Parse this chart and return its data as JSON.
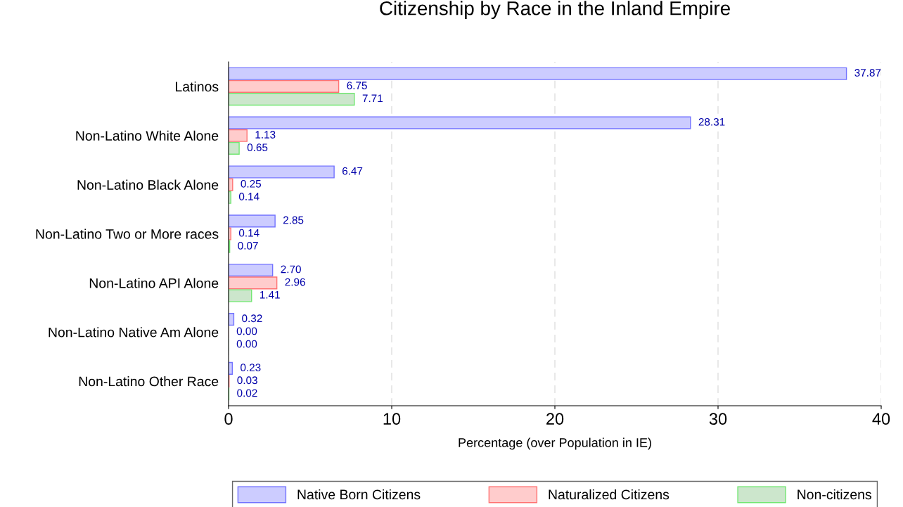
{
  "chart_data": {
    "type": "bar",
    "orientation": "horizontal",
    "title": "Citizenship by Race in the Inland Empire",
    "xlabel": "Percentage (over Population in IE)",
    "categories": [
      "Latinos",
      "Non-Latino White Alone",
      "Non-Latino Black Alone",
      "Non-Latino Two or More races",
      "Non-Latino API Alone",
      "Non-Latino Native Am Alone",
      "Non-Latino Other Race"
    ],
    "series": [
      {
        "name": "Native Born Citizens",
        "color": "#ccccff",
        "values": [
          37.87,
          28.31,
          6.47,
          2.85,
          2.7,
          0.32,
          0.23
        ],
        "value_labels": [
          "37.87",
          "28.31",
          "6.47",
          "2.85",
          "2.70",
          "0.32",
          "0.23"
        ]
      },
      {
        "name": "Naturalized Citizens",
        "color": "#ffcccc",
        "values": [
          6.75,
          1.13,
          0.25,
          0.14,
          2.96,
          0.0,
          0.03
        ],
        "value_labels": [
          "6.75",
          "1.13",
          "0.25",
          "0.14",
          "2.96",
          "0.00",
          "0.03"
        ]
      },
      {
        "name": "Non-citizens",
        "color": "#cce6cc",
        "values": [
          7.71,
          0.65,
          0.14,
          0.07,
          1.41,
          0.0,
          0.02
        ],
        "value_labels": [
          "7.71",
          "0.65",
          "0.14",
          "0.07",
          "1.41",
          "0.00",
          "0.02"
        ]
      }
    ],
    "xlim": [
      0,
      40
    ],
    "xticks": [
      0,
      10,
      20,
      30,
      40
    ],
    "grid": "x",
    "legend": "bottom"
  }
}
